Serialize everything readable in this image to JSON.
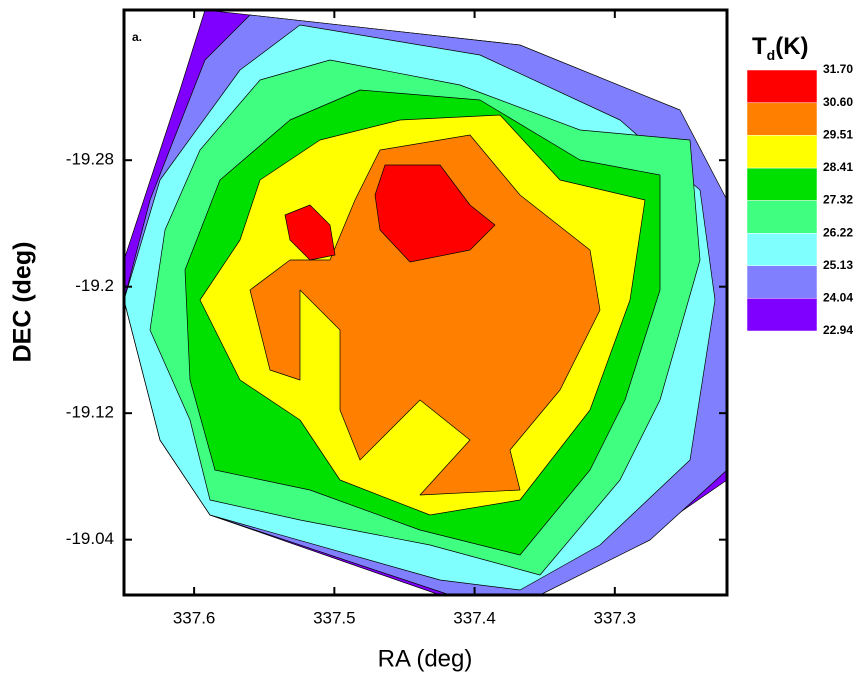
{
  "chart_data": {
    "type": "contour",
    "panel_label": "a.",
    "xlabel": "RA (deg)",
    "ylabel": "DEC (deg)",
    "colorbar_title": {
      "main": "T",
      "sub": "d",
      "unit": "(K)"
    },
    "xlim": [
      337.65,
      337.22
    ],
    "xticks": [
      337.6,
      337.5,
      337.4,
      337.3
    ],
    "ylim": [
      -19.005,
      -19.375
    ],
    "yticks": [
      -19.28,
      -19.2,
      -19.12,
      -19.04
    ],
    "levels": [
      22.94,
      24.04,
      25.13,
      26.22,
      27.32,
      28.41,
      29.51,
      {
        "value": 30.6,
        "label": "30.60"
      },
      {
        "value": 31.7,
        "label": "31.70"
      }
    ],
    "colors": [
      "#8000ff",
      "#8080ff",
      "#80ffff",
      "#40ff80",
      "#00e000",
      "#ffff00",
      "#ff8000",
      "#ff0000"
    ]
  }
}
